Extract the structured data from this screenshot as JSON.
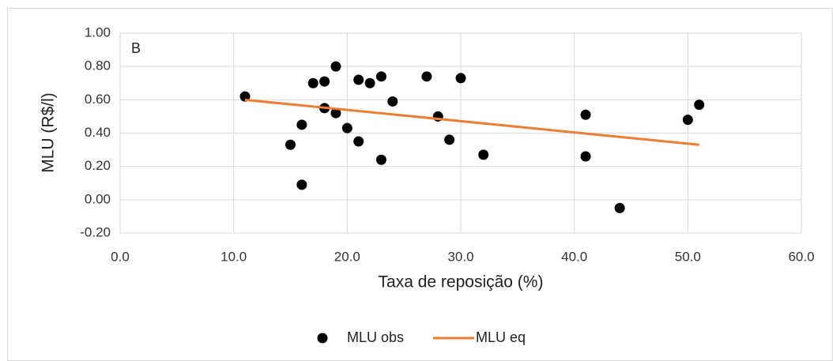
{
  "chart_data": {
    "type": "scatter",
    "annotation": "B",
    "x_label": "Taxa de reposição (%)",
    "y_label": "MLU (R$/l)",
    "xlim": [
      0,
      60
    ],
    "xticks": [
      {
        "value": 0,
        "label": "0.0"
      },
      {
        "value": 10,
        "label": "10.0"
      },
      {
        "value": 20,
        "label": "20.0"
      },
      {
        "value": 30,
        "label": "30.0"
      },
      {
        "value": 40,
        "label": "40.0"
      },
      {
        "value": 50,
        "label": "50.0"
      },
      {
        "value": 60,
        "label": "60.0"
      }
    ],
    "ylim": [
      -0.2,
      1.0
    ],
    "yticks": [
      {
        "value": -0.2,
        "label": "-0.20"
      },
      {
        "value": 0,
        "label": "0.00"
      },
      {
        "value": 0.2,
        "label": "0.20"
      },
      {
        "value": 0.4,
        "label": "0.40"
      },
      {
        "value": 0.6,
        "label": "0.60"
      },
      {
        "value": 0.8,
        "label": "0.80"
      },
      {
        "value": 1.0,
        "label": "1.00"
      }
    ],
    "grid": true,
    "legend": "bottom",
    "series": [
      {
        "name": "MLU obs",
        "color": "#000000",
        "mode": "markers",
        "x": [
          11,
          15,
          16,
          16,
          17,
          18,
          18,
          19,
          19,
          20,
          21,
          21,
          22,
          23,
          23,
          24,
          27,
          28,
          29,
          30,
          32,
          41,
          41,
          44,
          50,
          51
        ],
        "values": [
          0.62,
          0.33,
          0.45,
          0.09,
          0.7,
          0.71,
          0.55,
          0.8,
          0.52,
          0.43,
          0.72,
          0.35,
          0.7,
          0.74,
          0.24,
          0.59,
          0.74,
          0.5,
          0.36,
          0.73,
          0.27,
          0.51,
          0.26,
          -0.05,
          0.48,
          0.57
        ]
      },
      {
        "name": "MLU eq",
        "color": "#ed7d31",
        "mode": "line",
        "x": [
          11,
          51
        ],
        "values": [
          0.6,
          0.33
        ]
      }
    ]
  }
}
